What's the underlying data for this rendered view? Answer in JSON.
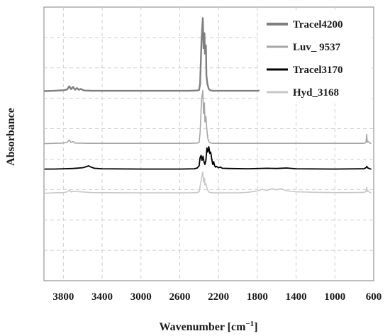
{
  "chart_data": {
    "type": "line",
    "xlabel": "Wavenumber [cm",
    "xlabel_superscript": "−1",
    "xlabel_close": "]",
    "ylabel": "Absorbance",
    "xlim": [
      4000,
      600
    ],
    "x_reversed": true,
    "x_ticks": [
      3800,
      3400,
      3000,
      2600,
      2200,
      1800,
      1400,
      1000,
      600
    ],
    "x_tick_labels": [
      "3800",
      "3400",
      "3000",
      "2600",
      "2200",
      "1800",
      "1400",
      "1000",
      "600"
    ],
    "y_ticks_unlabeled": true,
    "ylim": [
      0,
      100
    ],
    "grid": true,
    "legend_position": "top-right",
    "series": [
      {
        "name": "Tracel4200",
        "color": "#7f7f7f",
        "stroke_width": 2.4,
        "x": [
          3990,
          3900,
          3800,
          3760,
          3740,
          3720,
          3700,
          3680,
          3660,
          3640,
          3620,
          3600,
          3580,
          3500,
          3300,
          3000,
          2700,
          2500,
          2420,
          2400,
          2390,
          2375,
          2362,
          2355,
          2345,
          2340,
          2330,
          2325,
          2315,
          2300,
          2280,
          2250,
          2100,
          1900,
          1800,
          1720,
          1700,
          1680,
          1650,
          1600,
          1560,
          1540,
          1520,
          1500,
          1400,
          1200,
          1000,
          800,
          700,
          680,
          672,
          668,
          665,
          660,
          650,
          630
        ],
        "y": [
          69.3,
          69.4,
          69.6,
          69.9,
          71.1,
          70.0,
          70.8,
          69.8,
          70.4,
          69.8,
          70.1,
          69.7,
          69.5,
          69.4,
          69.4,
          69.4,
          69.4,
          69.4,
          69.5,
          69.7,
          72.0,
          88.0,
          96.0,
          85.0,
          90.5,
          83.0,
          86.0,
          75.0,
          72.0,
          70.0,
          69.5,
          69.4,
          69.4,
          69.4,
          69.4,
          69.8,
          70.3,
          69.7,
          69.9,
          69.6,
          69.8,
          70.1,
          69.6,
          69.5,
          69.4,
          69.4,
          69.4,
          69.4,
          69.5,
          70.0,
          74.5,
          71.0,
          69.8,
          70.6,
          69.5,
          69.4
        ]
      },
      {
        "name": "Luv_ 9537",
        "color": "#a6a6a6",
        "stroke_width": 1.6,
        "x": [
          3990,
          3900,
          3800,
          3760,
          3740,
          3720,
          3700,
          3680,
          3500,
          3000,
          2500,
          2420,
          2400,
          2390,
          2375,
          2362,
          2355,
          2345,
          2340,
          2330,
          2320,
          2310,
          2300,
          2280,
          2250,
          2000,
          1800,
          1700,
          1600,
          1400,
          1000,
          700,
          680,
          672,
          668,
          665,
          660,
          640,
          630
        ],
        "y": [
          50.1,
          50.2,
          50.3,
          50.6,
          51.4,
          50.5,
          50.9,
          50.3,
          50.2,
          50.2,
          50.2,
          50.3,
          50.6,
          54.0,
          66.0,
          69.5,
          61.0,
          65.0,
          58.0,
          60.0,
          55.0,
          52.0,
          50.8,
          50.3,
          50.2,
          50.2,
          50.2,
          50.2,
          50.2,
          50.2,
          50.2,
          50.2,
          50.5,
          53.5,
          51.2,
          50.6,
          51.0,
          50.3,
          50.2
        ]
      },
      {
        "name": "Tracel3170",
        "color": "#000000",
        "stroke_width": 1.8,
        "x": [
          3990,
          3900,
          3800,
          3700,
          3600,
          3560,
          3540,
          3520,
          3480,
          3400,
          3000,
          2600,
          2450,
          2420,
          2400,
          2390,
          2380,
          2370,
          2360,
          2350,
          2340,
          2330,
          2320,
          2310,
          2300,
          2290,
          2280,
          2270,
          2260,
          2250,
          2240,
          2230,
          2220,
          2200,
          2180,
          2160,
          2100,
          1900,
          1700,
          1600,
          1500,
          1400,
          1000,
          700,
          680,
          670,
          660,
          640,
          630
        ],
        "y": [
          40.8,
          40.8,
          40.9,
          41.0,
          41.3,
          41.7,
          42.0,
          41.6,
          41.1,
          40.9,
          40.8,
          40.8,
          40.9,
          41.2,
          42.0,
          45.0,
          45.8,
          44.0,
          45.5,
          43.5,
          42.5,
          44.0,
          48.5,
          47.0,
          49.0,
          46.5,
          47.0,
          44.5,
          42.5,
          43.5,
          42.0,
          41.5,
          41.8,
          41.3,
          41.5,
          41.1,
          41.0,
          40.9,
          41.1,
          41.0,
          41.2,
          40.9,
          40.8,
          40.9,
          41.3,
          41.8,
          41.2,
          40.9,
          40.8
        ]
      },
      {
        "name": "Hyd_3168",
        "color": "#c8c8c8",
        "stroke_width": 1.6,
        "x": [
          3990,
          3900,
          3800,
          3760,
          3740,
          3720,
          3700,
          3500,
          3000,
          2500,
          2420,
          2400,
          2390,
          2375,
          2362,
          2355,
          2345,
          2340,
          2330,
          2320,
          2310,
          2300,
          2280,
          2250,
          2000,
          1900,
          1800,
          1750,
          1700,
          1650,
          1600,
          1560,
          1500,
          1400,
          1200,
          1000,
          800,
          700,
          680,
          672,
          668,
          665,
          660,
          640,
          630
        ],
        "y": [
          32.0,
          32.1,
          32.2,
          32.5,
          33.1,
          32.4,
          32.7,
          32.2,
          32.1,
          32.1,
          32.2,
          32.5,
          34.5,
          37.5,
          39.8,
          36.0,
          37.5,
          35.0,
          35.5,
          34.0,
          33.0,
          32.4,
          32.2,
          32.1,
          32.1,
          32.3,
          32.8,
          33.4,
          33.0,
          33.6,
          33.2,
          33.6,
          32.9,
          32.5,
          32.3,
          32.2,
          32.2,
          32.3,
          32.6,
          34.2,
          33.0,
          32.6,
          32.9,
          32.3,
          32.2
        ]
      }
    ]
  }
}
